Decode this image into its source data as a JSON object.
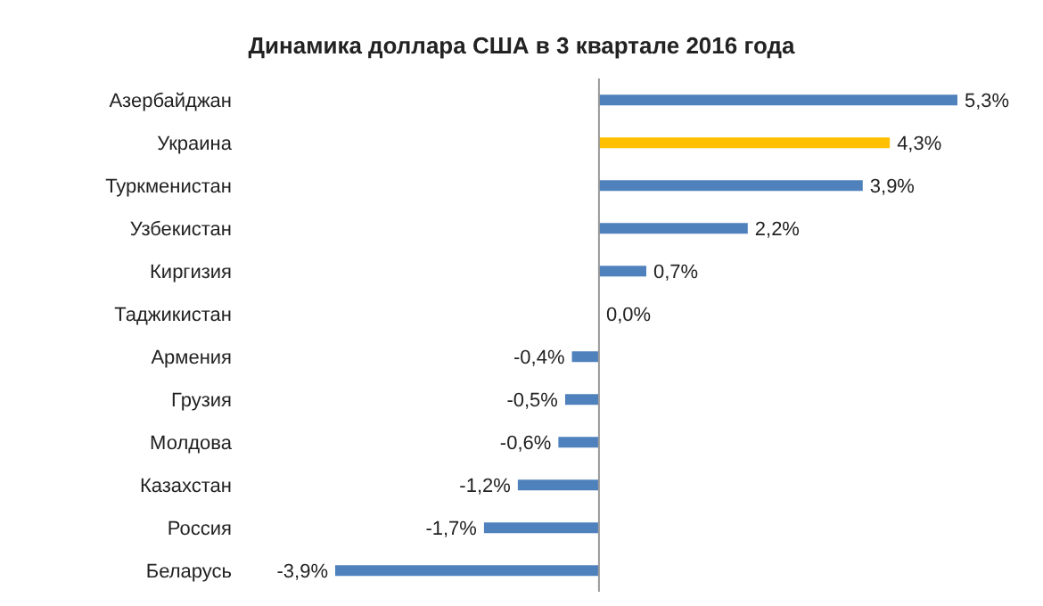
{
  "chart_data": {
    "type": "bar",
    "orientation": "horizontal",
    "title": "Динамика доллара США в 3 квартале 2016 года",
    "categories": [
      "Азербайджан",
      "Украина",
      "Туркменистан",
      "Узбекистан",
      "Киргизия",
      "Таджикистан",
      "Армения",
      "Грузия",
      "Молдова",
      "Казахстан",
      "Россия",
      "Беларусь"
    ],
    "values": [
      5.3,
      4.3,
      3.9,
      2.2,
      0.7,
      0.0,
      -0.4,
      -0.5,
      -0.6,
      -1.2,
      -1.7,
      -3.9
    ],
    "value_labels": [
      "5,3%",
      "4,3%",
      "3,9%",
      "2,2%",
      "0,7%",
      "0,0%",
      "-0,4%",
      "-0,5%",
      "-0,6%",
      "-1,2%",
      "-1,7%",
      "-3,9%"
    ],
    "colors": [
      "#4f81bd",
      "#ffc000",
      "#4f81bd",
      "#4f81bd",
      "#4f81bd",
      "#4f81bd",
      "#4f81bd",
      "#4f81bd",
      "#4f81bd",
      "#4f81bd",
      "#4f81bd",
      "#4f81bd"
    ],
    "tick_labels": "y"
  }
}
